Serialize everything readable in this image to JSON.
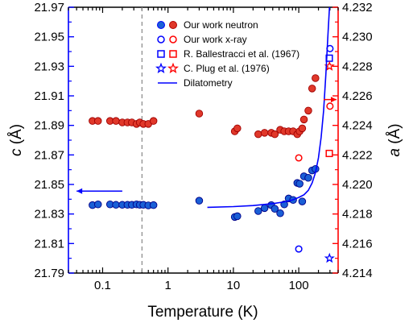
{
  "chart_data": {
    "type": "scatter",
    "title": "",
    "x_axis": {
      "label": "Temperature (K)",
      "scale": "log",
      "range": [
        0.03,
        400
      ],
      "ticks": [
        {
          "value": 0.1,
          "label": "0.1"
        },
        {
          "value": 1,
          "label": "1"
        },
        {
          "value": 10,
          "label": "10"
        },
        {
          "value": 100,
          "label": "100"
        }
      ]
    },
    "y_left": {
      "label_symbol": "c",
      "label_unit": " (Å)",
      "range": [
        21.79,
        21.97
      ],
      "ticks": [
        "21.79",
        "21.81",
        "21.83",
        "21.85",
        "21.87",
        "21.89",
        "21.91",
        "21.93",
        "21.95",
        "21.97"
      ]
    },
    "y_right": {
      "label_symbol": "a",
      "label_unit": " (Å)",
      "range": [
        4.214,
        4.232
      ],
      "ticks": [
        "4.214",
        "4.216",
        "4.218",
        "4.220",
        "4.222",
        "4.224",
        "4.226",
        "4.228",
        "4.230",
        "4.232"
      ],
      "color": "#ff0000"
    },
    "dashed_vertical_line_x": 0.4,
    "colors": {
      "blue": "#0000ff",
      "blue_fill": "#1a5fd6",
      "red": "#ff0000",
      "red_fill": "#e0382a"
    },
    "legend": {
      "placement": "top-center",
      "entries": [
        {
          "label": "Our work neutron",
          "marker": "filled-circle"
        },
        {
          "label": "Our work x-ray",
          "marker": "open-circle"
        },
        {
          "label": "R. Ballestracci et al. (1967)",
          "marker": "open-square"
        },
        {
          "label": "C. Plug et al. (1976)",
          "marker": "open-star"
        },
        {
          "label": "Dilatometry",
          "marker": "line"
        }
      ]
    },
    "series": [
      {
        "name": "Our work neutron",
        "axis": "left",
        "color": "blue",
        "marker": "filled-circle",
        "points": [
          [
            0.07,
            21.836
          ],
          [
            0.085,
            21.8365
          ],
          [
            0.13,
            21.8365
          ],
          [
            0.16,
            21.8362
          ],
          [
            0.2,
            21.8362
          ],
          [
            0.24,
            21.8362
          ],
          [
            0.28,
            21.8362
          ],
          [
            0.33,
            21.8365
          ],
          [
            0.37,
            21.8362
          ],
          [
            0.42,
            21.8362
          ],
          [
            0.5,
            21.8358
          ],
          [
            0.6,
            21.836
          ],
          [
            3,
            21.839
          ],
          [
            10.5,
            21.828
          ],
          [
            11.5,
            21.8285
          ],
          [
            24,
            21.832
          ],
          [
            30,
            21.834
          ],
          [
            38,
            21.836
          ],
          [
            43,
            21.8335
          ],
          [
            52,
            21.8305
          ],
          [
            60,
            21.8365
          ],
          [
            70,
            21.8405
          ],
          [
            82,
            21.8395
          ],
          [
            95,
            21.851
          ],
          [
            103,
            21.8505
          ],
          [
            113,
            21.8385
          ],
          [
            120,
            21.8555
          ],
          [
            140,
            21.8545
          ],
          [
            160,
            21.8595
          ],
          [
            180,
            21.8605
          ]
        ]
      },
      {
        "name": "Our work neutron",
        "axis": "right",
        "color": "red",
        "marker": "filled-circle",
        "points": [
          [
            0.07,
            4.2243
          ],
          [
            0.085,
            4.2243
          ],
          [
            0.13,
            4.2243
          ],
          [
            0.16,
            4.2243
          ],
          [
            0.2,
            4.2242
          ],
          [
            0.24,
            4.2242
          ],
          [
            0.28,
            4.2242
          ],
          [
            0.33,
            4.2241
          ],
          [
            0.37,
            4.2242
          ],
          [
            0.42,
            4.2241
          ],
          [
            0.5,
            4.2241
          ],
          [
            0.6,
            4.2243
          ],
          [
            3,
            4.2248
          ],
          [
            10.5,
            4.2236
          ],
          [
            11.5,
            4.2238
          ],
          [
            24,
            4.2234
          ],
          [
            30,
            4.2235
          ],
          [
            38,
            4.2235
          ],
          [
            43,
            4.2234
          ],
          [
            52,
            4.2237
          ],
          [
            60,
            4.2236
          ],
          [
            70,
            4.2236
          ],
          [
            82,
            4.2236
          ],
          [
            95,
            4.2234
          ],
          [
            103,
            4.2236
          ],
          [
            113,
            4.2238
          ],
          [
            120,
            4.2244
          ],
          [
            140,
            4.225
          ],
          [
            160,
            4.2265
          ],
          [
            180,
            4.2272
          ]
        ]
      },
      {
        "name": "Our work x-ray",
        "axis": "left",
        "color": "blue",
        "marker": "open-circle",
        "points": [
          [
            100,
            21.8063
          ],
          [
            300,
            21.942
          ]
        ]
      },
      {
        "name": "Our work x-ray",
        "axis": "right",
        "color": "red",
        "marker": "open-circle",
        "points": [
          [
            100,
            4.2218
          ],
          [
            300,
            4.2253
          ]
        ]
      },
      {
        "name": "R. Ballestracci et al. (1967)",
        "axis": "left",
        "color": "blue",
        "marker": "open-square",
        "points": [
          [
            293,
            21.9355
          ]
        ]
      },
      {
        "name": "R. Ballestracci et al. (1967)",
        "axis": "right",
        "color": "red",
        "marker": "open-square",
        "points": [
          [
            293,
            4.2221
          ]
        ]
      },
      {
        "name": "C. Plug et al. (1976)",
        "axis": "left",
        "color": "blue",
        "marker": "open-star",
        "points": [
          [
            295,
            21.8
          ]
        ]
      },
      {
        "name": "C. Plug et al. (1976)",
        "axis": "right",
        "color": "red",
        "marker": "open-star",
        "points": [
          [
            295,
            4.228
          ]
        ]
      },
      {
        "name": "Dilatometry",
        "axis": "left",
        "color": "blue",
        "marker": "line",
        "points": [
          [
            4,
            21.8345
          ],
          [
            10,
            21.835
          ],
          [
            20,
            21.8357
          ],
          [
            40,
            21.837
          ],
          [
            60,
            21.8382
          ],
          [
            80,
            21.8395
          ],
          [
            100,
            21.8412
          ],
          [
            120,
            21.843
          ],
          [
            140,
            21.846
          ],
          [
            160,
            21.851
          ],
          [
            180,
            21.858
          ],
          [
            200,
            21.868
          ],
          [
            220,
            21.882
          ],
          [
            240,
            21.9
          ],
          [
            260,
            21.925
          ],
          [
            280,
            21.952
          ],
          [
            295,
            21.97
          ]
        ]
      }
    ],
    "annotations": [
      {
        "type": "arrow",
        "direction": "left",
        "color": "blue",
        "x_from": 0.2,
        "x_to": 0.04,
        "y_left": 21.8455
      },
      {
        "type": "arrow",
        "direction": "right",
        "color": "red",
        "x_from": 240,
        "x_to": 400,
        "y_left": 21.9075
      }
    ]
  }
}
